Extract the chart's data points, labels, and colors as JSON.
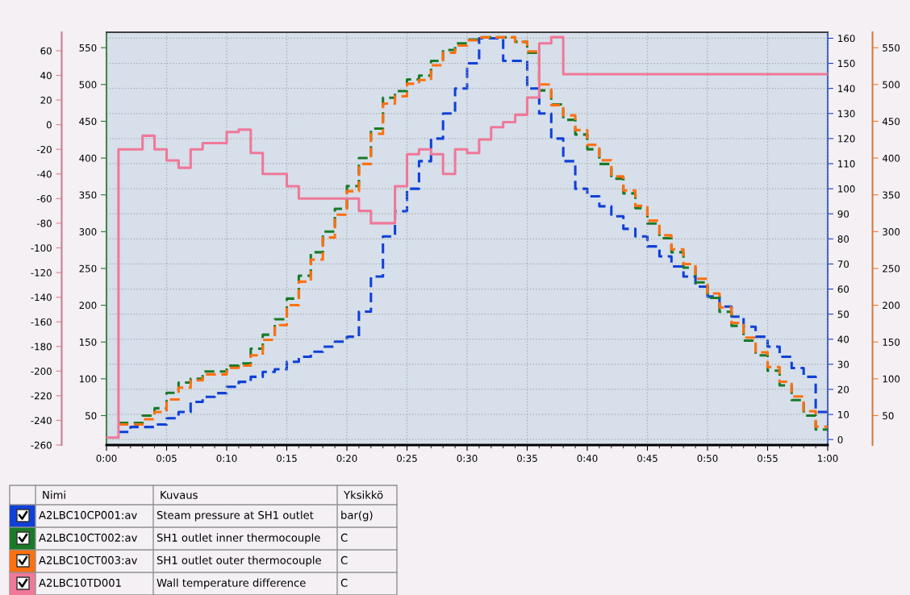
{
  "chart_data": {
    "type": "step",
    "xlim": [
      0,
      60
    ],
    "xticks": [
      {
        "value": 0,
        "label": "0:00"
      },
      {
        "value": 5,
        "label": "0:05"
      },
      {
        "value": 10,
        "label": "0:10"
      },
      {
        "value": 15,
        "label": "0:15"
      },
      {
        "value": 20,
        "label": "0:20"
      },
      {
        "value": 25,
        "label": "0:25"
      },
      {
        "value": 30,
        "label": "0:30"
      },
      {
        "value": 35,
        "label": "0:35"
      },
      {
        "value": 40,
        "label": "0:40"
      },
      {
        "value": 45,
        "label": "0:45"
      },
      {
        "value": 50,
        "label": "0:50"
      },
      {
        "value": 55,
        "label": "0:55"
      },
      {
        "value": 60,
        "label": "1:00"
      }
    ],
    "ylim": [
      10,
      571
    ],
    "yticks": [
      50,
      100,
      150,
      200,
      250,
      300,
      350,
      400,
      450,
      500,
      550
    ],
    "y2lim": [
      -2.2,
      162.4
    ],
    "y2ticks": [
      0,
      10,
      20,
      30,
      40,
      50,
      60,
      70,
      80,
      90,
      100,
      110,
      120,
      130,
      140,
      150,
      160
    ],
    "y3lim": [
      -260,
      75
    ],
    "y3ticks": [
      -260,
      -240,
      -220,
      -200,
      -180,
      -160,
      -140,
      -120,
      -100,
      -80,
      -60,
      -40,
      -20,
      0,
      20,
      40,
      60
    ],
    "grid": true,
    "legend": "bottom left",
    "series": [
      {
        "name": "A2LBC10CP001:av",
        "color": "#1040d8",
        "axis": "y2",
        "line_style": "dashed",
        "x": [
          1,
          2,
          4,
          5,
          6,
          7,
          8,
          9,
          10,
          11,
          12,
          13,
          14,
          15,
          16,
          17,
          18,
          19,
          20,
          21,
          22,
          23,
          24,
          25,
          26,
          27,
          28,
          29,
          30,
          31,
          33,
          35,
          36,
          37,
          38,
          39,
          40,
          41,
          42,
          43,
          44,
          45,
          46,
          47,
          48,
          49,
          50,
          51,
          52,
          53,
          54,
          55,
          56,
          57,
          58,
          59,
          60
        ],
        "values": [
          3,
          5,
          6,
          8.5,
          11,
          15,
          17,
          18.5,
          21,
          23,
          25,
          27,
          28,
          31,
          33,
          35,
          37,
          39,
          41,
          51,
          65,
          81,
          91,
          100,
          111,
          120,
          130,
          140,
          150,
          160,
          151,
          140,
          130,
          120,
          111,
          100,
          97,
          93,
          89,
          84,
          81,
          77,
          73,
          69,
          65,
          61,
          57,
          53,
          49,
          45,
          41,
          37,
          33,
          28.5,
          25,
          11,
          11
        ]
      },
      {
        "name": "A2LBC10CT002:av",
        "color": "#1a7a28",
        "axis": "y",
        "line_style": "dashed",
        "x": [
          1,
          3,
          4,
          5,
          6,
          7,
          8,
          10,
          11,
          12,
          13,
          14,
          15,
          16,
          17,
          18,
          19,
          20,
          21,
          22,
          23,
          24,
          25,
          26,
          27,
          28,
          29,
          30,
          31,
          34,
          35,
          36,
          37,
          38,
          39,
          40,
          41,
          42,
          43,
          44,
          45,
          46,
          47,
          48,
          49,
          50,
          51,
          52,
          53,
          54,
          55,
          56,
          57,
          58,
          59,
          60
        ],
        "values": [
          40,
          50,
          60,
          81,
          95,
          100,
          110,
          118,
          121,
          141,
          160,
          181,
          209,
          240,
          272,
          300,
          331,
          362,
          400,
          440,
          482,
          491,
          507,
          512,
          532,
          547,
          556,
          561,
          564,
          558,
          543,
          492,
          473,
          452,
          432,
          412,
          392,
          372,
          352,
          332,
          311,
          291,
          272,
          251,
          231,
          210,
          191,
          172,
          152,
          132,
          111,
          91,
          71,
          50,
          31,
          31
        ]
      },
      {
        "name": "A2LBC10CT003:av",
        "color": "#ff7010",
        "axis": "y",
        "line_style": "dashed",
        "x": [
          1,
          3,
          4,
          5,
          6,
          7,
          8,
          10,
          11,
          12,
          13,
          14,
          15,
          16,
          17,
          18,
          19,
          20,
          21,
          22,
          23,
          24,
          25,
          26,
          27,
          28,
          29,
          30,
          31,
          34,
          35,
          36,
          37,
          38,
          39,
          40,
          41,
          42,
          43,
          44,
          45,
          46,
          47,
          48,
          49,
          50,
          51,
          52,
          53,
          54,
          55,
          56,
          57,
          58,
          59,
          60
        ],
        "values": [
          38,
          45,
          55,
          72,
          88,
          98,
          106,
          115,
          118,
          132,
          153,
          173,
          200,
          232,
          262,
          292,
          323,
          355,
          392,
          433,
          474,
          484,
          501,
          506,
          526,
          543,
          553,
          560,
          564,
          558,
          545,
          500,
          472,
          458,
          438,
          418,
          397,
          375,
          356,
          335,
          315,
          295,
          276,
          256,
          236,
          216,
          197,
          176,
          156,
          136,
          116,
          96,
          76,
          56,
          35,
          35
        ]
      },
      {
        "name": "A2LBC10TD001",
        "color": "#f07898",
        "axis": "y3",
        "line_style": "solid",
        "x": [
          0,
          1,
          3,
          4,
          5,
          6,
          7,
          8,
          10,
          11,
          12,
          13,
          15,
          16,
          21,
          22,
          24,
          25,
          26,
          27,
          28,
          29,
          30,
          31,
          32,
          33,
          34,
          35,
          36,
          37,
          38,
          60
        ],
        "values": [
          -254,
          -20,
          -9,
          -20,
          -29,
          -35,
          -20,
          -15,
          -6,
          -4,
          -23,
          -40,
          -50,
          -60,
          -70,
          -80,
          -50,
          -24,
          -20,
          -24,
          -40,
          -20,
          -23,
          -12,
          -2,
          2,
          8,
          22,
          66,
          71,
          41,
          41
        ]
      }
    ],
    "annotations": [
      "Nimi",
      "Kuvaus",
      "Yksikkö",
      "Steam pressure at SH1 outlet",
      "SH1 outlet inner thermocouple",
      "SH1 outlet outer thermocouple",
      "Wall temperature difference",
      "bar(g)",
      "C",
      "C",
      "C",
      "50",
      "100",
      "150",
      "200",
      "250",
      "300",
      "350",
      "400",
      "450",
      "500",
      "550"
    ]
  }
}
